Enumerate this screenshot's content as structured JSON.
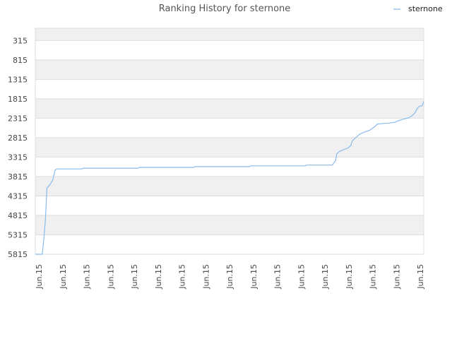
{
  "chart_data": {
    "type": "line",
    "title": "Ranking History for sternone",
    "xlabel": "",
    "ylabel": "",
    "y_inverted": true,
    "ylim": [
      5815,
      0
    ],
    "y_ticks": [
      315,
      815,
      1315,
      1815,
      2315,
      2815,
      3315,
      3815,
      4315,
      4815,
      5315,
      5815
    ],
    "x_tick_labels": [
      "Jun.15",
      "Jun.15",
      "Jun.15",
      "Jun.15",
      "Jun.15",
      "Jun.15",
      "Jun.15",
      "Jun.15",
      "Jun.15",
      "Jun.15",
      "Jun.15",
      "Jun.15",
      "Jun.15",
      "Jun.15",
      "Jun.15",
      "Jun.15",
      "Jun.15"
    ],
    "x_range": [
      0,
      100
    ],
    "grid": true,
    "legend_position": "top-right",
    "series": [
      {
        "name": "sternone",
        "color": "#88bbee",
        "points": [
          [
            0.0,
            5815
          ],
          [
            1.8,
            5815
          ],
          [
            2.2,
            5420
          ],
          [
            2.6,
            4930
          ],
          [
            3.0,
            4110
          ],
          [
            3.8,
            4020
          ],
          [
            4.5,
            3900
          ],
          [
            5.1,
            3650
          ],
          [
            5.5,
            3620
          ],
          [
            12.0,
            3620
          ],
          [
            12.3,
            3600
          ],
          [
            26.5,
            3600
          ],
          [
            26.8,
            3580
          ],
          [
            40.8,
            3580
          ],
          [
            41.1,
            3560
          ],
          [
            55.2,
            3560
          ],
          [
            55.5,
            3540
          ],
          [
            69.5,
            3540
          ],
          [
            69.8,
            3520
          ],
          [
            76.5,
            3520
          ],
          [
            77.3,
            3400
          ],
          [
            77.6,
            3230
          ],
          [
            78.3,
            3170
          ],
          [
            79.2,
            3130
          ],
          [
            80.5,
            3080
          ],
          [
            81.2,
            3020
          ],
          [
            81.6,
            2900
          ],
          [
            82.4,
            2820
          ],
          [
            83.6,
            2720
          ],
          [
            85.0,
            2660
          ],
          [
            86.0,
            2630
          ],
          [
            87.4,
            2530
          ],
          [
            88.0,
            2470
          ],
          [
            89.5,
            2450
          ],
          [
            91.0,
            2440
          ],
          [
            92.5,
            2420
          ],
          [
            93.2,
            2390
          ],
          [
            94.0,
            2360
          ],
          [
            95.5,
            2320
          ],
          [
            96.2,
            2300
          ],
          [
            97.0,
            2250
          ],
          [
            97.8,
            2170
          ],
          [
            98.4,
            2050
          ],
          [
            98.9,
            2010
          ],
          [
            99.6,
            1990
          ],
          [
            100.0,
            1880
          ]
        ]
      }
    ]
  }
}
